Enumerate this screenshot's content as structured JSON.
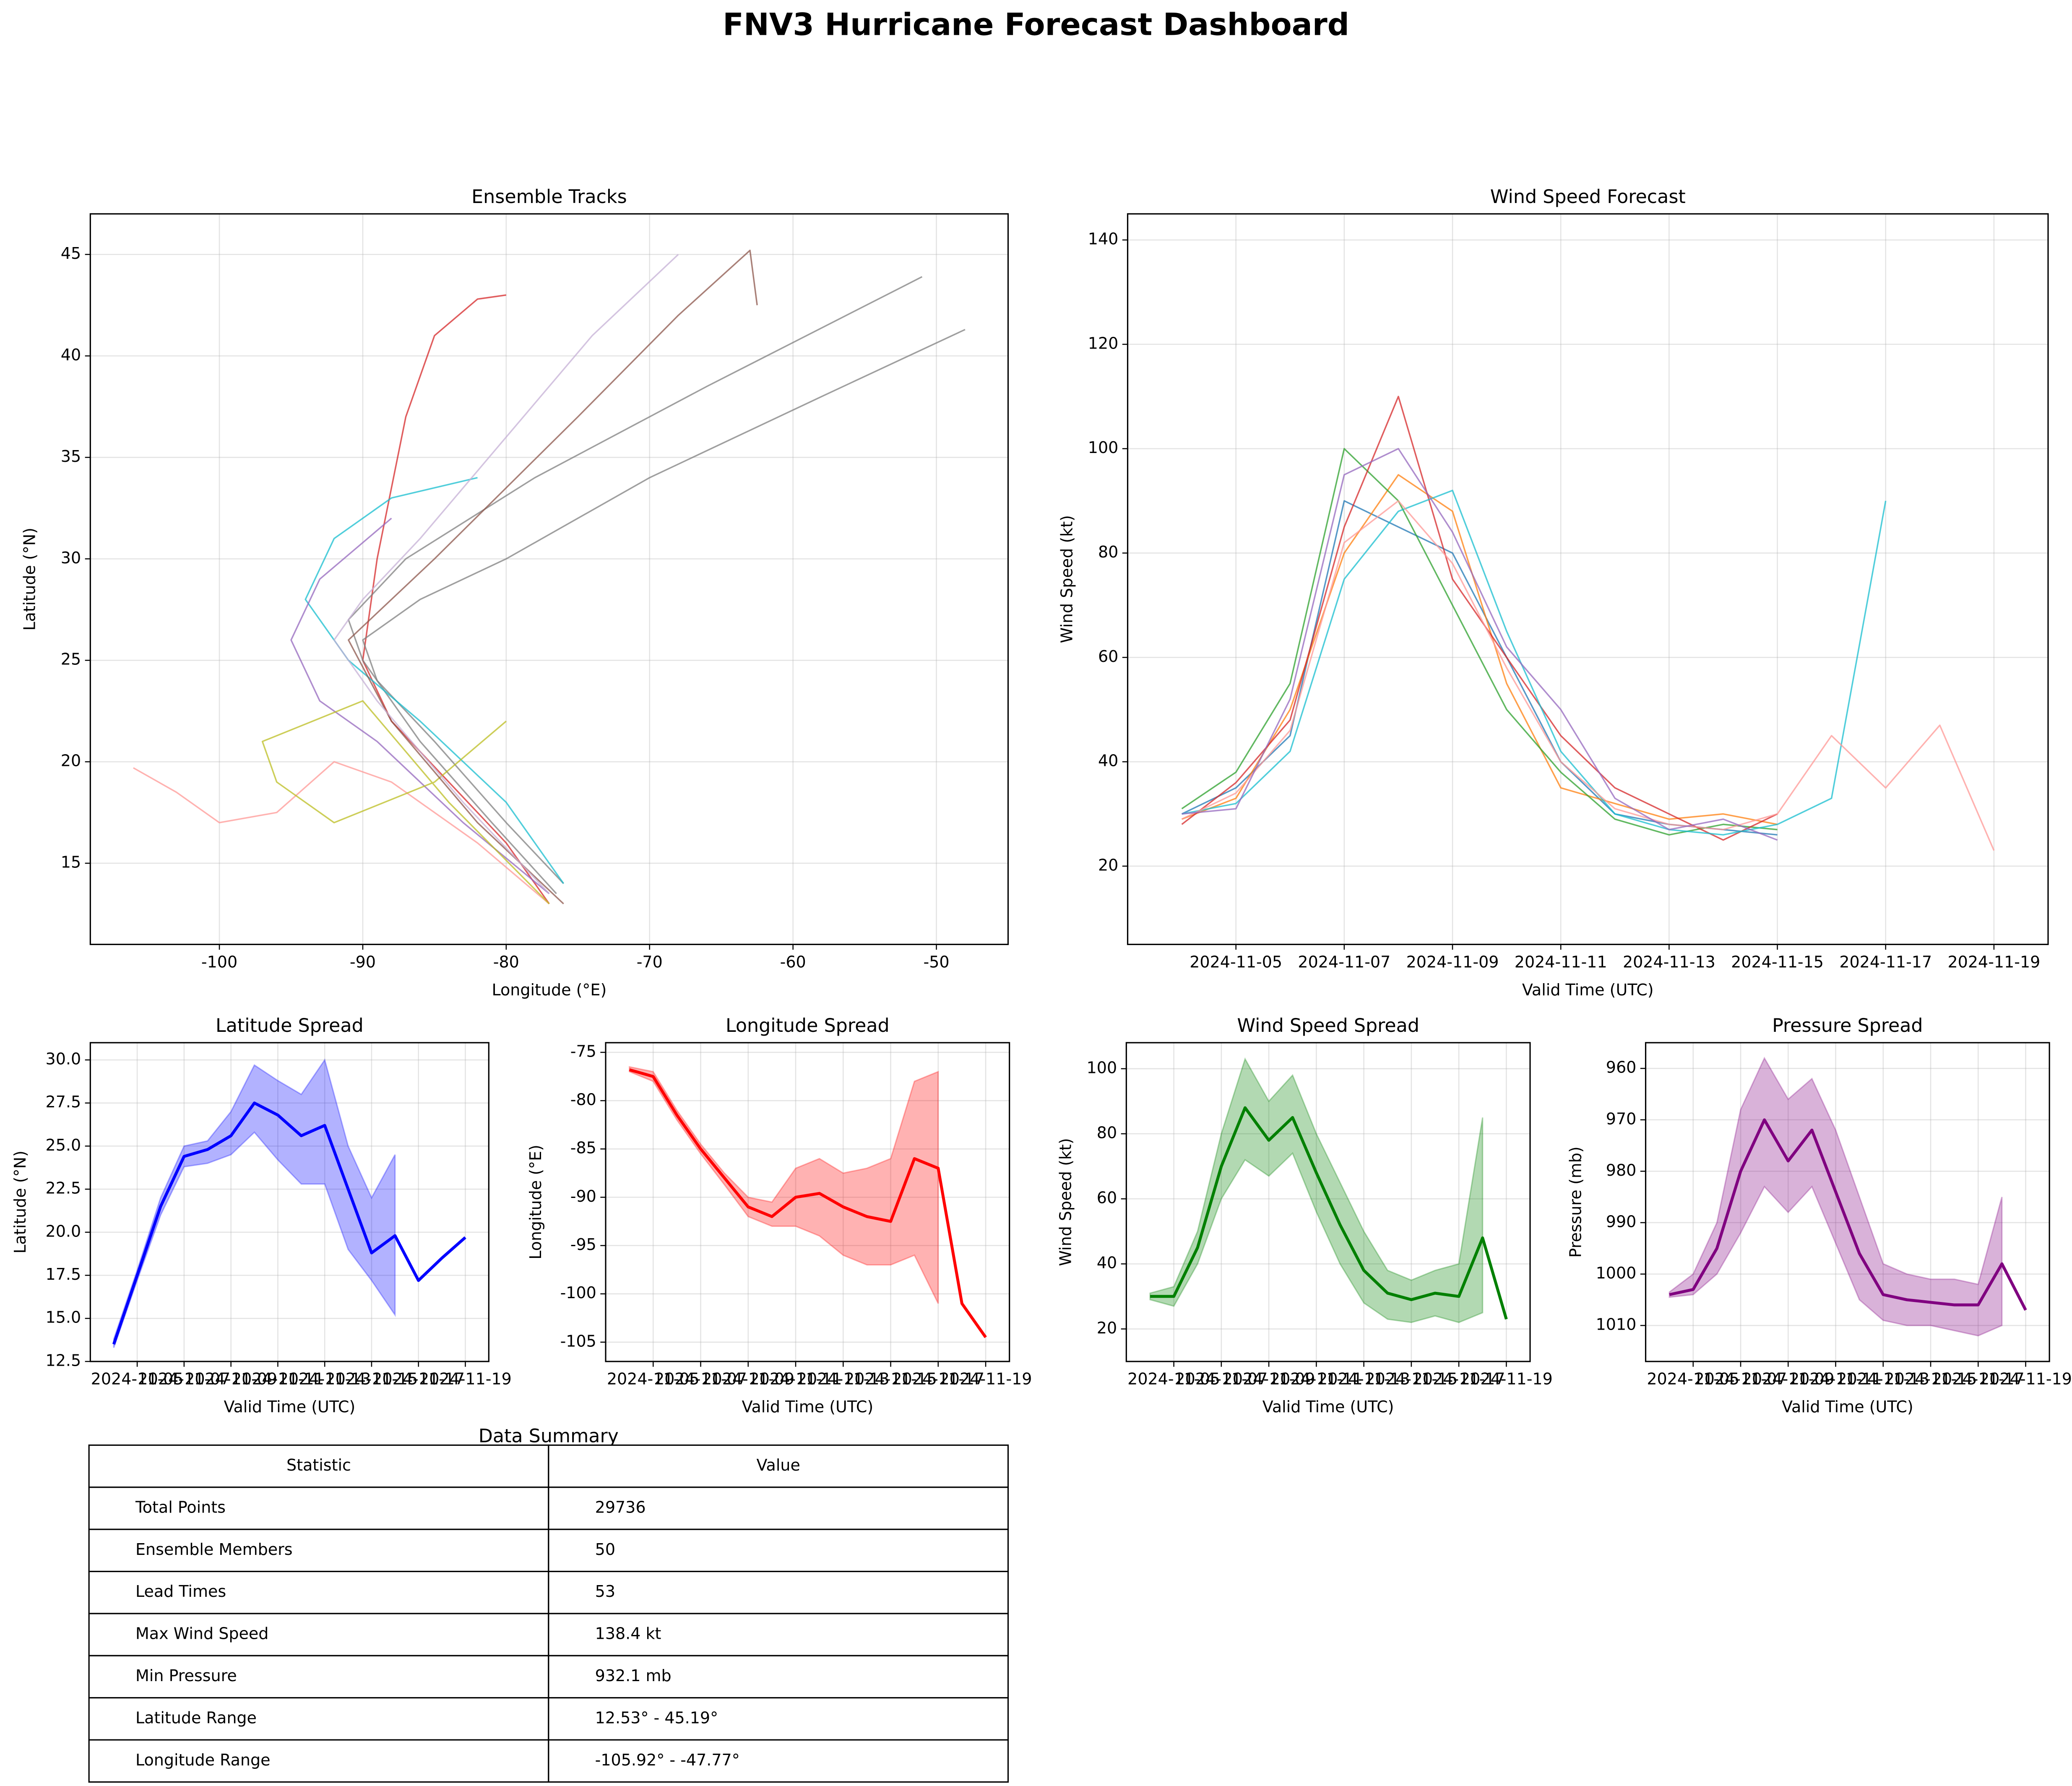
{
  "title": "FNV3 Hurricane Forecast Dashboard",
  "chart_data": [
    {
      "type": "line",
      "title": "Ensemble Tracks",
      "x_label": "Longitude (°E)",
      "y_label": "Latitude (°N)",
      "xlim": [
        -109,
        -45
      ],
      "xticks": [
        -100,
        -90,
        -80,
        -70,
        -60,
        -50
      ],
      "ylim": [
        11,
        47
      ],
      "yticks": [
        15,
        20,
        25,
        30,
        35,
        40,
        45
      ],
      "grid": true,
      "series": [
        {
          "color": "#d62728",
          "x": [
            -77,
            -80,
            -84,
            -88,
            -90,
            -89,
            -87,
            -85,
            -82,
            -80
          ],
          "values": [
            13,
            16,
            19,
            22,
            25,
            30,
            37,
            41,
            42.8,
            43
          ]
        },
        {
          "color": "#7f7f7f",
          "x": [
            -76,
            -80,
            -85,
            -89,
            -90,
            -86,
            -80,
            -70,
            -58,
            -48
          ],
          "values": [
            14,
            17,
            21,
            24,
            26,
            28,
            30,
            34,
            38,
            41.3
          ]
        },
        {
          "color": "#7f7f7f",
          "x": [
            -76.5,
            -81,
            -86,
            -90,
            -91,
            -87,
            -78,
            -66,
            -51
          ],
          "values": [
            13.5,
            17,
            21,
            25,
            27,
            30,
            34,
            38.5,
            43.9
          ]
        },
        {
          "color": "#ff9896",
          "x": [
            -77,
            -82,
            -88,
            -92,
            -96,
            -100,
            -103,
            -106
          ],
          "values": [
            13,
            16,
            19,
            20,
            17.5,
            17,
            18.5,
            19.7
          ]
        },
        {
          "color": "#17becf",
          "x": [
            -76,
            -80,
            -86,
            -91,
            -94,
            -92,
            -88,
            -82
          ],
          "values": [
            14,
            18,
            22,
            25,
            28,
            31,
            33,
            34
          ]
        },
        {
          "color": "#9467bd",
          "x": [
            -77,
            -83,
            -89,
            -93,
            -95,
            -93,
            -88
          ],
          "values": [
            13.5,
            17,
            21,
            23,
            26,
            29,
            32
          ]
        },
        {
          "color": "#bcbd22",
          "x": [
            -77,
            -84,
            -90,
            -97,
            -96,
            -92,
            -85,
            -80
          ],
          "values": [
            13,
            18,
            23,
            21,
            19,
            17,
            19,
            22
          ]
        },
        {
          "color": "#8c564b",
          "x": [
            -76,
            -82,
            -88,
            -91,
            -85,
            -75,
            -68,
            -63,
            -62.5
          ],
          "values": [
            13,
            17,
            22,
            26,
            30,
            37,
            42,
            45.2,
            42.5
          ]
        },
        {
          "color": "#c5b0d5",
          "x": [
            -77,
            -83,
            -89,
            -92,
            -90,
            -86,
            -80,
            -74,
            -68
          ],
          "values": [
            13.5,
            18,
            23,
            26,
            28,
            31,
            36,
            41,
            45
          ]
        }
      ]
    },
    {
      "type": "line",
      "title": "Wind Speed Forecast",
      "x_label": "Valid Time (UTC)",
      "y_label": "Wind Speed (kt)",
      "xlim": [
        "2024-11-03",
        "2024-11-20"
      ],
      "xticks": [
        "2024-11-05",
        "2024-11-07",
        "2024-11-09",
        "2024-11-11",
        "2024-11-13",
        "2024-11-15",
        "2024-11-17",
        "2024-11-19"
      ],
      "ylim": [
        5,
        145
      ],
      "yticks": [
        20,
        40,
        60,
        80,
        100,
        120,
        140
      ],
      "grid": true,
      "x": [
        "2024-11-04",
        "2024-11-05",
        "2024-11-06",
        "2024-11-07",
        "2024-11-08",
        "2024-11-09",
        "2024-11-10",
        "2024-11-11",
        "2024-11-12",
        "2024-11-13",
        "2024-11-14",
        "2024-11-15",
        "2024-11-16",
        "2024-11-17",
        "2024-11-18",
        "2024-11-19"
      ],
      "series": [
        {
          "color": "#1f77b4",
          "values": [
            30,
            35,
            45,
            90,
            85,
            80,
            60,
            40,
            30,
            28,
            27,
            26,
            null,
            null,
            null,
            null
          ]
        },
        {
          "color": "#ff7f0e",
          "values": [
            29,
            33,
            50,
            80,
            95,
            88,
            55,
            35,
            32,
            29,
            30,
            28,
            null,
            null,
            null,
            null
          ]
        },
        {
          "color": "#2ca02c",
          "values": [
            31,
            38,
            55,
            100,
            90,
            70,
            50,
            38,
            29,
            26,
            28,
            27,
            null,
            null,
            null,
            null
          ]
        },
        {
          "color": "#d62728",
          "values": [
            28,
            36,
            48,
            85,
            110,
            75,
            60,
            45,
            35,
            30,
            25,
            30,
            null,
            null,
            null,
            null
          ]
        },
        {
          "color": "#17becf",
          "values": [
            30,
            32,
            42,
            75,
            88,
            92,
            65,
            42,
            30,
            27,
            26,
            28,
            33,
            90,
            null,
            null
          ]
        },
        {
          "color": "#ff9896",
          "values": [
            29,
            34,
            46,
            82,
            90,
            78,
            58,
            40,
            31,
            28,
            27,
            30,
            45,
            35,
            47,
            23
          ]
        },
        {
          "color": "#9467bd",
          "values": [
            30,
            31,
            52,
            95,
            100,
            84,
            62,
            50,
            33,
            27,
            29,
            25,
            null,
            null,
            null,
            null
          ]
        }
      ]
    },
    {
      "type": "line",
      "title": "Latitude Spread",
      "x_label": "Valid Time (UTC)",
      "y_label": "Latitude (°N)",
      "xlim": [
        "2024-11-03",
        "2024-11-20"
      ],
      "xticks": [
        "2024-11-05",
        "2024-11-07",
        "2024-11-09",
        "2024-11-11",
        "2024-11-13",
        "2024-11-15",
        "2024-11-17",
        "2024-11-19"
      ],
      "ylim": [
        12.5,
        31
      ],
      "yticks": [
        {
          "value": 12.5,
          "label": "12.5"
        },
        {
          "value": 15,
          "label": "15.0"
        },
        17.5,
        {
          "value": 20,
          "label": "20.0"
        },
        22.5,
        {
          "value": 25,
          "label": "25.0"
        },
        27.5,
        {
          "value": 30,
          "label": "30.0"
        }
      ],
      "grid": true,
      "x": [
        "2024-11-04",
        "2024-11-05",
        "2024-11-06",
        "2024-11-07",
        "2024-11-08",
        "2024-11-09",
        "2024-11-10",
        "2024-11-11",
        "2024-11-12",
        "2024-11-13",
        "2024-11-14",
        "2024-11-15",
        "2024-11-16",
        "2024-11-17",
        "2024-11-18",
        "2024-11-19"
      ],
      "band": {
        "color": "#0000ff",
        "lower": [
          13.3,
          17.2,
          21,
          23.8,
          24,
          24.5,
          25.8,
          24.2,
          22.8,
          22.8,
          19,
          17.2,
          15.2,
          null,
          null,
          null
        ],
        "upper": [
          13.8,
          17.8,
          22,
          25,
          25.3,
          27,
          29.7,
          28.8,
          28,
          30,
          25,
          22,
          24.5,
          null,
          null,
          null
        ]
      },
      "series": [
        {
          "color": "#0000ff",
          "values": [
            13.5,
            17.5,
            21.5,
            24.4,
            24.8,
            25.6,
            27.5,
            26.8,
            25.6,
            26.2,
            22.5,
            18.8,
            19.8,
            17.2,
            18.5,
            19.7
          ]
        }
      ]
    },
    {
      "type": "line",
      "title": "Longitude Spread",
      "x_label": "Valid Time (UTC)",
      "y_label": "Longitude (°E)",
      "xlim": [
        "2024-11-03",
        "2024-11-20"
      ],
      "xticks": [
        "2024-11-05",
        "2024-11-07",
        "2024-11-09",
        "2024-11-11",
        "2024-11-13",
        "2024-11-15",
        "2024-11-17",
        "2024-11-19"
      ],
      "ylim": [
        -107,
        -74
      ],
      "yticks": [
        -105,
        -100,
        -95,
        -90,
        -85,
        -80,
        -75
      ],
      "grid": true,
      "x": [
        "2024-11-04",
        "2024-11-05",
        "2024-11-06",
        "2024-11-07",
        "2024-11-08",
        "2024-11-09",
        "2024-11-10",
        "2024-11-11",
        "2024-11-12",
        "2024-11-13",
        "2024-11-14",
        "2024-11-15",
        "2024-11-16",
        "2024-11-17",
        "2024-11-18",
        "2024-11-19"
      ],
      "band": {
        "color": "#ff0000",
        "lower": [
          -77,
          -78,
          -82,
          -85.5,
          -88.7,
          -92,
          -93,
          -93,
          -94,
          -96,
          -97,
          -97,
          -96,
          -101,
          null,
          null
        ],
        "upper": [
          -76.5,
          -77,
          -81,
          -84.5,
          -87.5,
          -90,
          -90.5,
          -87,
          -86,
          -87.5,
          -87,
          -86,
          -78,
          -77,
          null,
          null
        ]
      },
      "series": [
        {
          "color": "#ff0000",
          "values": [
            -76.8,
            -77.5,
            -81.5,
            -85,
            -88,
            -91,
            -92,
            -90,
            -89.6,
            -91,
            -92,
            -92.5,
            -86,
            -87,
            -101,
            -104.5
          ]
        }
      ]
    },
    {
      "type": "line",
      "title": "Wind Speed Spread",
      "x_label": "Valid Time (UTC)",
      "y_label": "Wind Speed (kt)",
      "xlim": [
        "2024-11-03",
        "2024-11-20"
      ],
      "xticks": [
        "2024-11-05",
        "2024-11-07",
        "2024-11-09",
        "2024-11-11",
        "2024-11-13",
        "2024-11-15",
        "2024-11-17",
        "2024-11-19"
      ],
      "ylim": [
        10,
        108
      ],
      "yticks": [
        20,
        40,
        60,
        80,
        100
      ],
      "grid": true,
      "x": [
        "2024-11-04",
        "2024-11-05",
        "2024-11-06",
        "2024-11-07",
        "2024-11-08",
        "2024-11-09",
        "2024-11-10",
        "2024-11-11",
        "2024-11-12",
        "2024-11-13",
        "2024-11-14",
        "2024-11-15",
        "2024-11-16",
        "2024-11-17",
        "2024-11-18",
        "2024-11-19"
      ],
      "band": {
        "color": "#008000",
        "lower": [
          29,
          27,
          40,
          60,
          72,
          67,
          74,
          56,
          40,
          28,
          23,
          22,
          24,
          22,
          25,
          null
        ],
        "upper": [
          31,
          33,
          50,
          80,
          103,
          90,
          98,
          80,
          65,
          50,
          38,
          35,
          38,
          40,
          85,
          null
        ]
      },
      "series": [
        {
          "color": "#008000",
          "values": [
            30,
            30,
            45,
            70,
            88,
            78,
            85,
            68,
            52,
            38,
            31,
            29,
            31,
            30,
            48,
            23
          ]
        }
      ]
    },
    {
      "type": "line",
      "title": "Pressure Spread",
      "x_label": "Valid Time (UTC)",
      "y_label": "Pressure (mb)",
      "xlim": [
        "2024-11-03",
        "2024-11-20"
      ],
      "xticks": [
        "2024-11-05",
        "2024-11-07",
        "2024-11-09",
        "2024-11-11",
        "2024-11-13",
        "2024-11-15",
        "2024-11-17",
        "2024-11-19"
      ],
      "ylim": [
        1017,
        955
      ],
      "yticks": [
        960,
        970,
        980,
        990,
        1000,
        1010
      ],
      "grid": true,
      "x": [
        "2024-11-04",
        "2024-11-05",
        "2024-11-06",
        "2024-11-07",
        "2024-11-08",
        "2024-11-09",
        "2024-11-10",
        "2024-11-11",
        "2024-11-12",
        "2024-11-13",
        "2024-11-14",
        "2024-11-15",
        "2024-11-16",
        "2024-11-17",
        "2024-11-18",
        "2024-11-19"
      ],
      "band": {
        "color": "#800080",
        "lower": [
          1003.5,
          1000,
          990,
          968,
          958,
          966,
          962,
          972,
          985,
          998,
          1000,
          1001,
          1001,
          1002,
          985,
          null
        ],
        "upper": [
          1004.5,
          1004,
          1000,
          992,
          983,
          988,
          983,
          994,
          1005,
          1009,
          1010,
          1010,
          1011,
          1012,
          1010,
          null
        ]
      },
      "series": [
        {
          "color": "#800080",
          "values": [
            1004,
            1003,
            995,
            980,
            970,
            978,
            972,
            984,
            996,
            1004,
            1005,
            1005.5,
            1006,
            1006,
            998,
            1007
          ]
        }
      ]
    }
  ],
  "table": {
    "title": "Data Summary",
    "columns": [
      "Statistic",
      "Value"
    ],
    "rows": [
      [
        "Total Points",
        "29736"
      ],
      [
        "Ensemble Members",
        "50"
      ],
      [
        "Lead Times",
        "53"
      ],
      [
        "Max Wind Speed",
        "138.4 kt"
      ],
      [
        "Min Pressure",
        "932.1 mb"
      ],
      [
        "Latitude Range",
        "12.53° - 45.19°"
      ],
      [
        "Longitude Range",
        "-105.92° - -47.77°"
      ]
    ]
  }
}
